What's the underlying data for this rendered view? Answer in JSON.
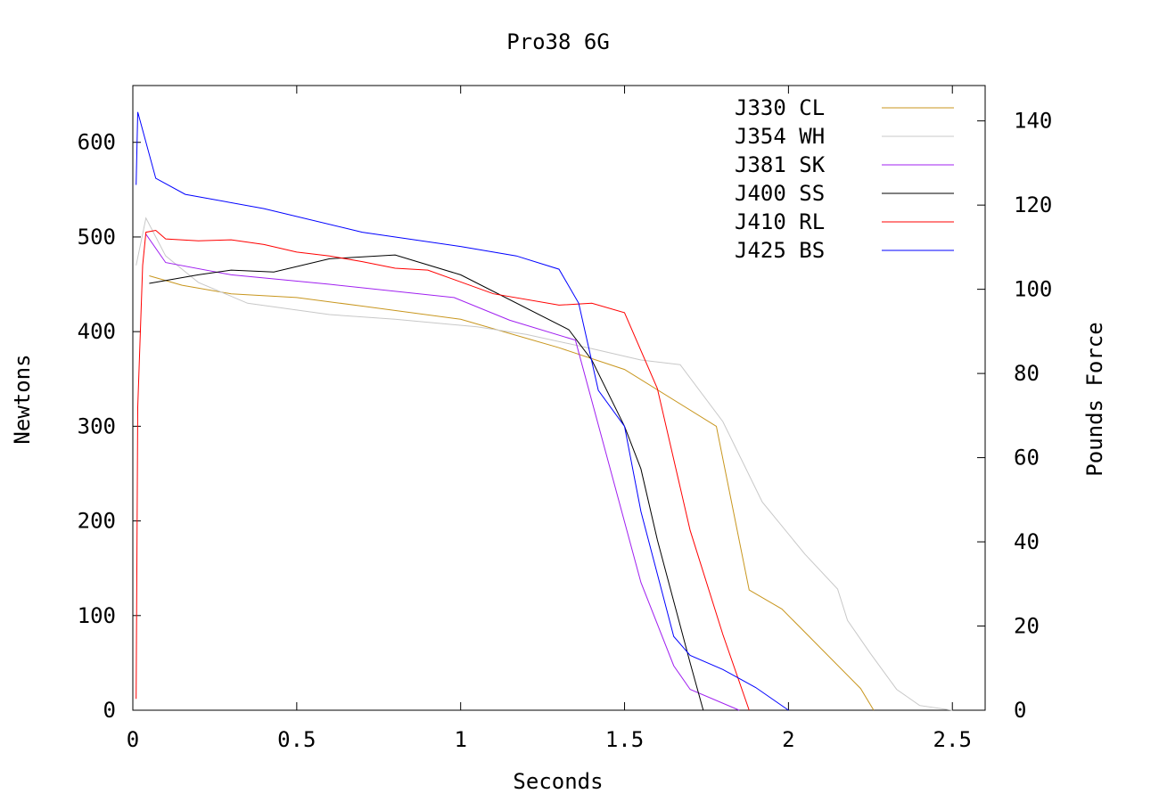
{
  "chart_data": {
    "type": "line",
    "title": "Pro38 6G",
    "xlabel": "Seconds",
    "ylabel": "Newtons",
    "y2label": "Pounds Force",
    "xlim": [
      0,
      2.6
    ],
    "ylim": [
      0,
      660
    ],
    "y2lim": [
      0,
      148.4
    ],
    "x_ticks": [
      0,
      0.5,
      1,
      1.5,
      2,
      2.5
    ],
    "x_tick_labels": [
      "0",
      "0.5",
      "1",
      "1.5",
      "2",
      "2.5"
    ],
    "y_ticks": [
      0,
      100,
      200,
      300,
      400,
      500,
      600
    ],
    "y_tick_labels": [
      "0",
      "100",
      "200",
      "300",
      "400",
      "500",
      "600"
    ],
    "y2_ticks": [
      0,
      20,
      40,
      60,
      80,
      100,
      120,
      140
    ],
    "y2_tick_labels": [
      "0",
      "20",
      "40",
      "60",
      "80",
      "100",
      "120",
      "140"
    ],
    "grid": false,
    "legend_position": "top-right",
    "series": [
      {
        "name": "J330 CL",
        "color": "#c8961e",
        "points": [
          [
            0.05,
            459
          ],
          [
            0.15,
            449
          ],
          [
            0.3,
            440
          ],
          [
            0.5,
            436
          ],
          [
            0.7,
            427
          ],
          [
            1.0,
            413
          ],
          [
            1.3,
            383
          ],
          [
            1.5,
            360
          ],
          [
            1.78,
            300
          ],
          [
            1.88,
            127
          ],
          [
            1.98,
            107
          ],
          [
            2.22,
            23
          ],
          [
            2.26,
            0
          ]
        ]
      },
      {
        "name": "J354 WH",
        "color": "#c8c8c8",
        "points": [
          [
            0.01,
            470
          ],
          [
            0.04,
            520
          ],
          [
            0.1,
            480
          ],
          [
            0.2,
            452
          ],
          [
            0.35,
            430
          ],
          [
            0.6,
            418
          ],
          [
            0.8,
            413
          ],
          [
            1.05,
            405
          ],
          [
            1.2,
            397
          ],
          [
            1.4,
            382
          ],
          [
            1.55,
            370
          ],
          [
            1.67,
            365
          ],
          [
            1.8,
            305
          ],
          [
            1.92,
            220
          ],
          [
            2.05,
            165
          ],
          [
            2.15,
            128
          ],
          [
            2.18,
            95
          ],
          [
            2.25,
            60
          ],
          [
            2.33,
            22
          ],
          [
            2.4,
            5
          ],
          [
            2.5,
            0
          ]
        ]
      },
      {
        "name": "J381 SK",
        "color": "#a020f0",
        "points": [
          [
            0.04,
            503
          ],
          [
            0.1,
            473
          ],
          [
            0.3,
            460
          ],
          [
            0.6,
            450
          ],
          [
            0.98,
            436
          ],
          [
            1.15,
            412
          ],
          [
            1.35,
            391
          ],
          [
            1.55,
            135
          ],
          [
            1.65,
            47
          ],
          [
            1.7,
            22
          ],
          [
            1.85,
            0
          ]
        ]
      },
      {
        "name": "J400 SS",
        "color": "#000000",
        "points": [
          [
            0.05,
            451
          ],
          [
            0.2,
            460
          ],
          [
            0.3,
            465
          ],
          [
            0.43,
            463
          ],
          [
            0.6,
            477
          ],
          [
            0.8,
            481
          ],
          [
            1.0,
            460
          ],
          [
            1.33,
            402
          ],
          [
            1.4,
            370
          ],
          [
            1.5,
            300
          ],
          [
            1.55,
            255
          ],
          [
            1.6,
            180
          ],
          [
            1.7,
            50
          ],
          [
            1.74,
            0
          ]
        ]
      },
      {
        "name": "J410 RL",
        "color": "#ff0000",
        "points": [
          [
            0.01,
            12
          ],
          [
            0.015,
            320
          ],
          [
            0.03,
            470
          ],
          [
            0.04,
            505
          ],
          [
            0.07,
            507
          ],
          [
            0.1,
            498
          ],
          [
            0.2,
            496
          ],
          [
            0.3,
            497
          ],
          [
            0.4,
            492
          ],
          [
            0.5,
            484
          ],
          [
            0.6,
            480
          ],
          [
            0.7,
            474
          ],
          [
            0.8,
            467
          ],
          [
            0.9,
            465
          ],
          [
            1.1,
            440
          ],
          [
            1.3,
            428
          ],
          [
            1.4,
            430
          ],
          [
            1.5,
            420
          ],
          [
            1.6,
            340
          ],
          [
            1.7,
            190
          ],
          [
            1.8,
            80
          ],
          [
            1.88,
            0
          ]
        ]
      },
      {
        "name": "J425 BS",
        "color": "#0000ff",
        "points": [
          [
            0.01,
            555
          ],
          [
            0.015,
            632
          ],
          [
            0.07,
            562
          ],
          [
            0.16,
            545
          ],
          [
            0.4,
            530
          ],
          [
            0.7,
            505
          ],
          [
            1.0,
            490
          ],
          [
            1.17,
            480
          ],
          [
            1.3,
            466
          ],
          [
            1.36,
            430
          ],
          [
            1.42,
            338
          ],
          [
            1.5,
            300
          ],
          [
            1.55,
            210
          ],
          [
            1.65,
            78
          ],
          [
            1.7,
            58
          ],
          [
            1.8,
            43
          ],
          [
            1.9,
            24
          ],
          [
            2.0,
            0
          ]
        ]
      }
    ]
  }
}
